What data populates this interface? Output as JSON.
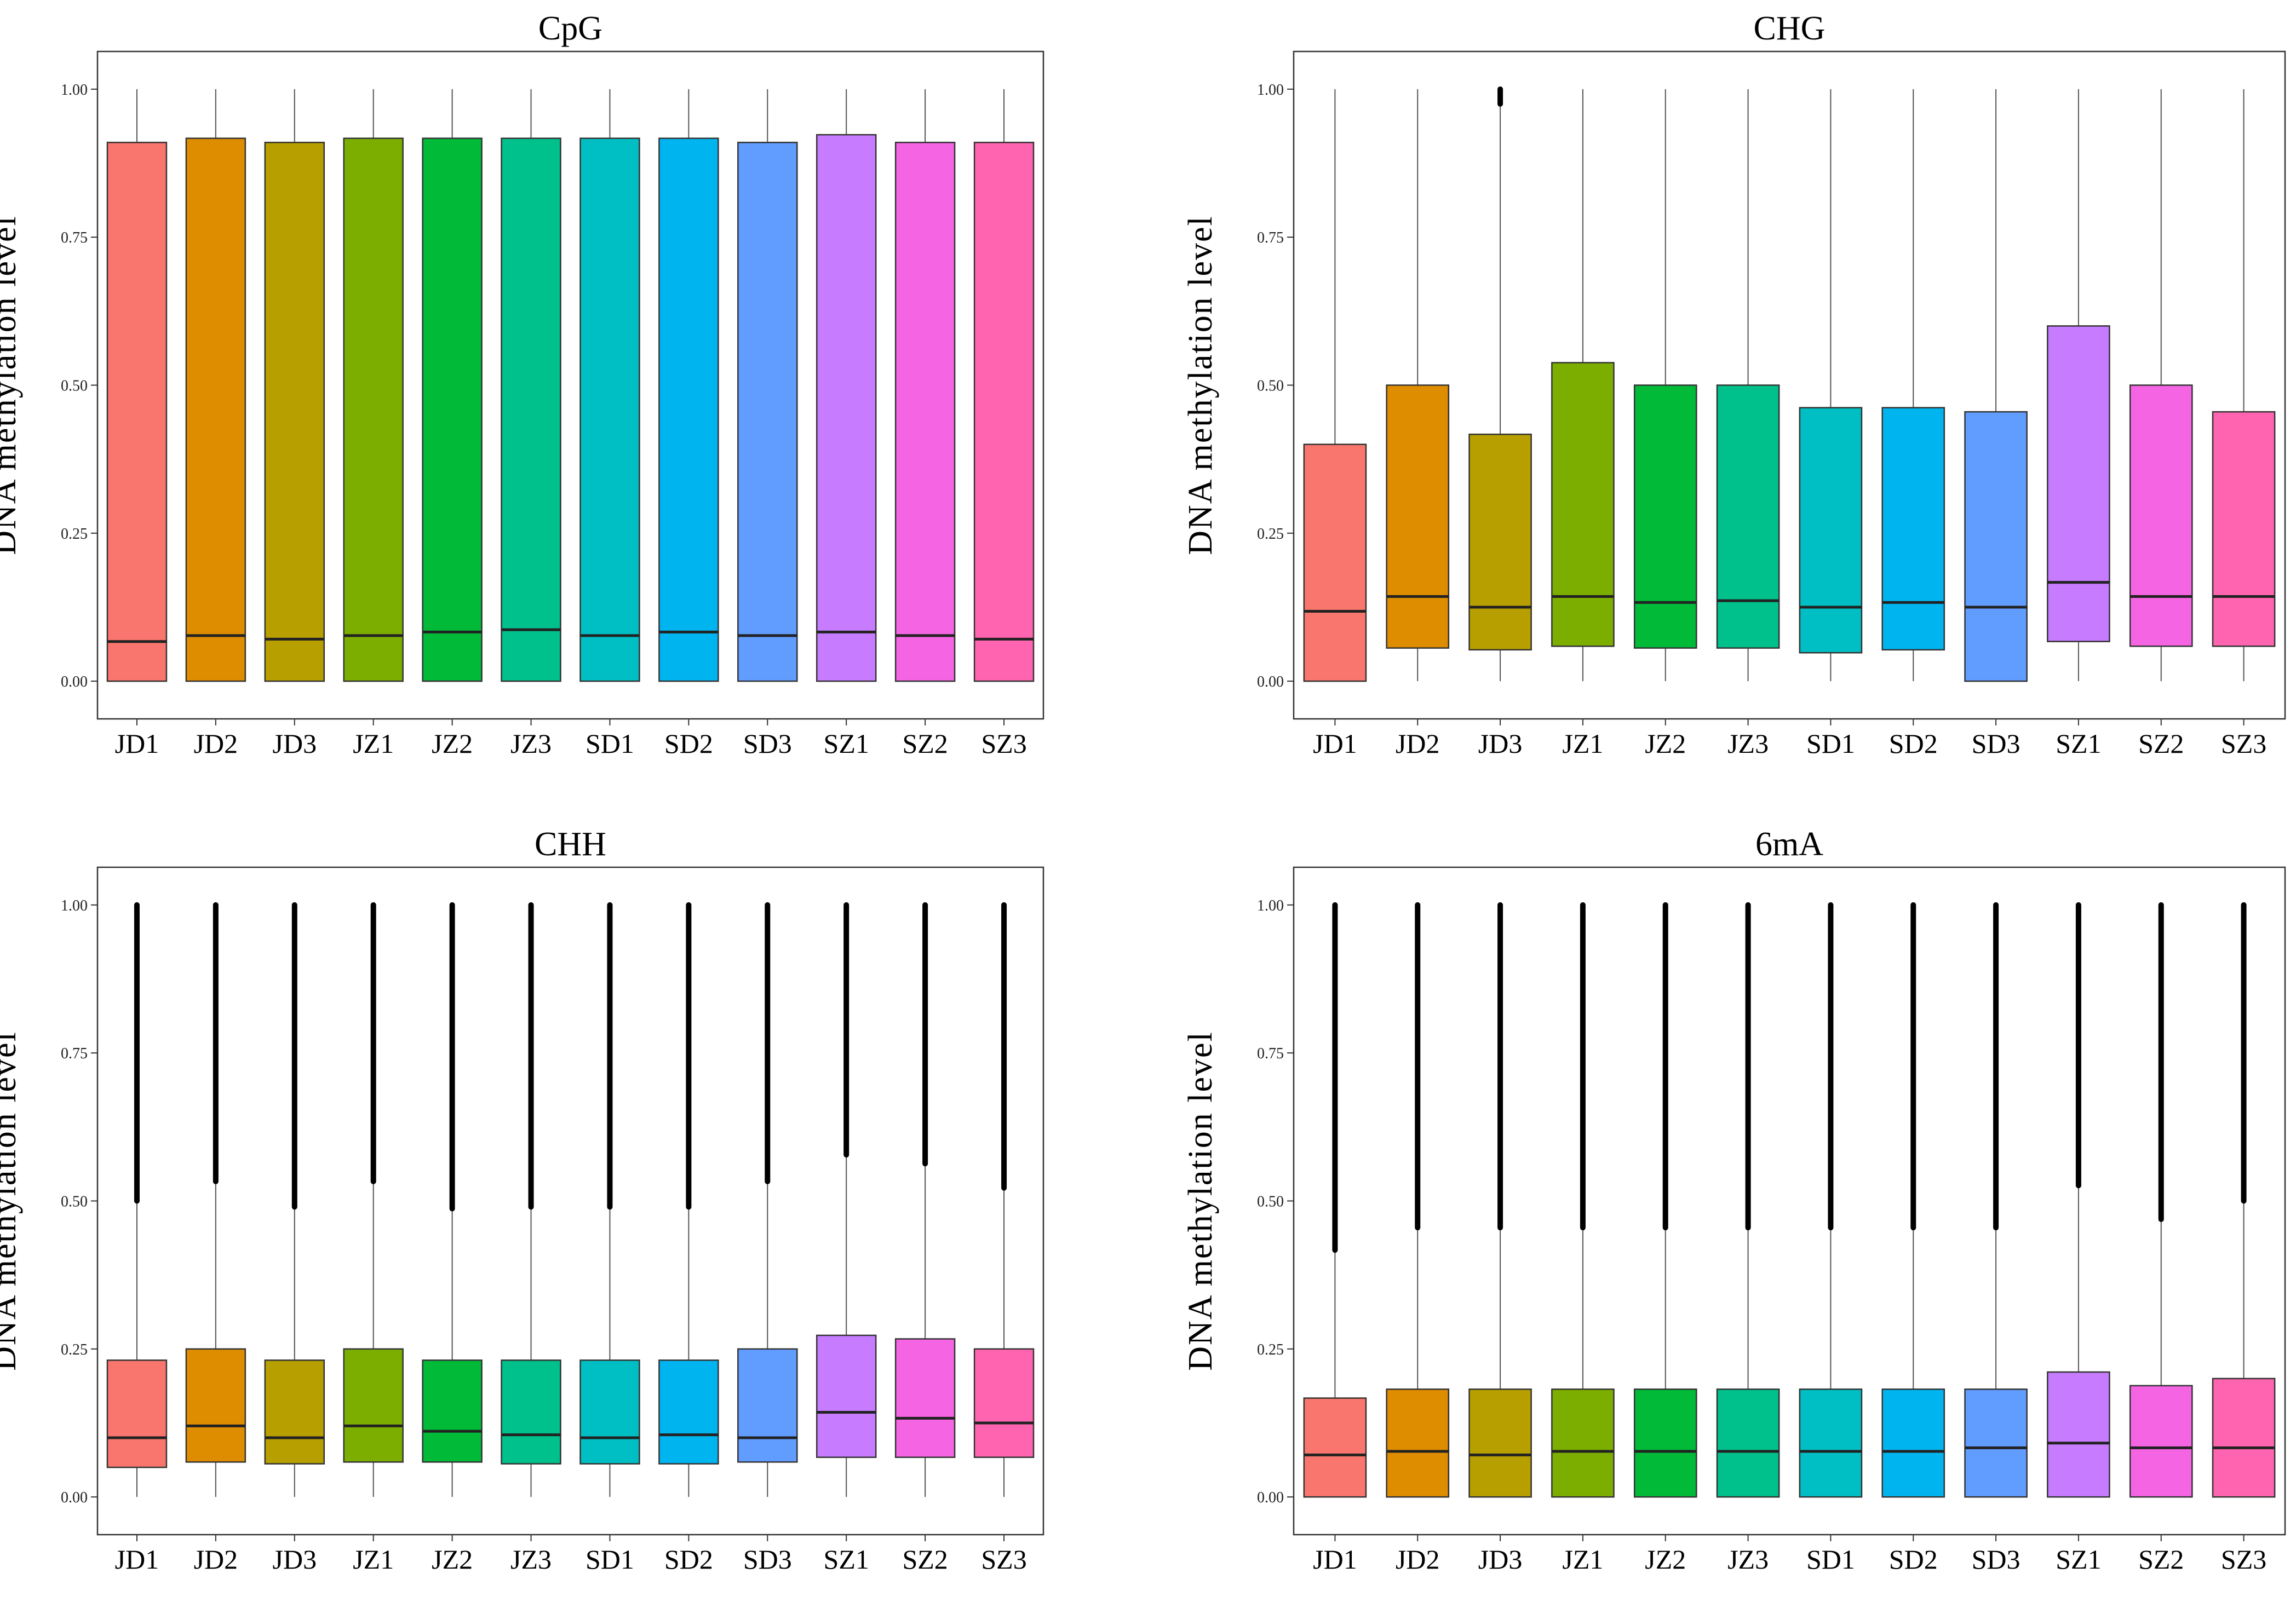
{
  "figure": {
    "ylabel": "DNA  methylation  level",
    "samples": [
      "JD1",
      "JD2",
      "JD3",
      "JZ1",
      "JZ2",
      "JZ3",
      "SD1",
      "SD2",
      "SD3",
      "SZ1",
      "SZ2",
      "SZ3"
    ],
    "colors": [
      "#F8766D",
      "#DE8C00",
      "#B79F00",
      "#7CAE00",
      "#00BA38",
      "#00C08B",
      "#00BFC4",
      "#00B4F0",
      "#619CFF",
      "#C77CFF",
      "#F564E3",
      "#FF64B0"
    ],
    "yticks": [
      "0.00",
      "0.25",
      "0.50",
      "0.75",
      "1.00"
    ]
  },
  "chart_data": [
    {
      "type": "boxplot",
      "title": "CpG",
      "ylabel": "DNA  methylation  level",
      "ylim": [
        0,
        1
      ],
      "categories": [
        "JD1",
        "JD2",
        "JD3",
        "JZ1",
        "JZ2",
        "JZ3",
        "SD1",
        "SD2",
        "SD3",
        "SZ1",
        "SZ2",
        "SZ3"
      ],
      "boxes": [
        {
          "min": 0,
          "q1": 0,
          "median": 0.067,
          "q3": 0.91,
          "max": 1.0,
          "outliers_from": null
        },
        {
          "min": 0,
          "q1": 0,
          "median": 0.077,
          "q3": 0.917,
          "max": 1.0,
          "outliers_from": null
        },
        {
          "min": 0,
          "q1": 0,
          "median": 0.071,
          "q3": 0.91,
          "max": 1.0,
          "outliers_from": null
        },
        {
          "min": 0,
          "q1": 0,
          "median": 0.077,
          "q3": 0.917,
          "max": 1.0,
          "outliers_from": null
        },
        {
          "min": 0,
          "q1": 0,
          "median": 0.083,
          "q3": 0.917,
          "max": 1.0,
          "outliers_from": null
        },
        {
          "min": 0,
          "q1": 0,
          "median": 0.087,
          "q3": 0.917,
          "max": 1.0,
          "outliers_from": null
        },
        {
          "min": 0,
          "q1": 0,
          "median": 0.077,
          "q3": 0.917,
          "max": 1.0,
          "outliers_from": null
        },
        {
          "min": 0,
          "q1": 0,
          "median": 0.083,
          "q3": 0.917,
          "max": 1.0,
          "outliers_from": null
        },
        {
          "min": 0,
          "q1": 0,
          "median": 0.077,
          "q3": 0.91,
          "max": 1.0,
          "outliers_from": null
        },
        {
          "min": 0,
          "q1": 0,
          "median": 0.083,
          "q3": 0.923,
          "max": 1.0,
          "outliers_from": null
        },
        {
          "min": 0,
          "q1": 0,
          "median": 0.077,
          "q3": 0.91,
          "max": 1.0,
          "outliers_from": null
        },
        {
          "min": 0,
          "q1": 0,
          "median": 0.071,
          "q3": 0.91,
          "max": 1.0,
          "outliers_from": null
        }
      ]
    },
    {
      "type": "boxplot",
      "title": "CHG",
      "ylabel": "DNA  methylation  level",
      "ylim": [
        0,
        1
      ],
      "categories": [
        "JD1",
        "JD2",
        "JD3",
        "JZ1",
        "JZ2",
        "JZ3",
        "SD1",
        "SD2",
        "SD3",
        "SZ1",
        "SZ2",
        "SZ3"
      ],
      "boxes": [
        {
          "min": 0,
          "q1": 0,
          "median": 0.118,
          "q3": 0.4,
          "max": 1.0,
          "outliers_from": null
        },
        {
          "min": 0,
          "q1": 0.056,
          "median": 0.143,
          "q3": 0.5,
          "max": 1.0,
          "outliers_from": null
        },
        {
          "min": 0,
          "q1": 0.053,
          "median": 0.125,
          "q3": 0.417,
          "max": 0.975,
          "outliers_from": 0.975
        },
        {
          "min": 0,
          "q1": 0.059,
          "median": 0.143,
          "q3": 0.538,
          "max": 1.0,
          "outliers_from": null
        },
        {
          "min": 0,
          "q1": 0.056,
          "median": 0.133,
          "q3": 0.5,
          "max": 1.0,
          "outliers_from": null
        },
        {
          "min": 0,
          "q1": 0.056,
          "median": 0.136,
          "q3": 0.5,
          "max": 1.0,
          "outliers_from": null
        },
        {
          "min": 0,
          "q1": 0.048,
          "median": 0.125,
          "q3": 0.462,
          "max": 1.0,
          "outliers_from": null
        },
        {
          "min": 0,
          "q1": 0.053,
          "median": 0.133,
          "q3": 0.462,
          "max": 1.0,
          "outliers_from": null
        },
        {
          "min": 0,
          "q1": 0,
          "median": 0.125,
          "q3": 0.455,
          "max": 1.0,
          "outliers_from": null
        },
        {
          "min": 0,
          "q1": 0.067,
          "median": 0.167,
          "q3": 0.6,
          "max": 1.0,
          "outliers_from": null
        },
        {
          "min": 0,
          "q1": 0.059,
          "median": 0.143,
          "q3": 0.5,
          "max": 1.0,
          "outliers_from": null
        },
        {
          "min": 0,
          "q1": 0.059,
          "median": 0.143,
          "q3": 0.455,
          "max": 1.0,
          "outliers_from": null
        }
      ]
    },
    {
      "type": "boxplot",
      "title": "CHH",
      "ylabel": "DNA  methylation  level",
      "ylim": [
        0,
        1
      ],
      "categories": [
        "JD1",
        "JD2",
        "JD3",
        "JZ1",
        "JZ2",
        "JZ3",
        "SD1",
        "SD2",
        "SD3",
        "SZ1",
        "SZ2",
        "SZ3"
      ],
      "boxes": [
        {
          "min": 0,
          "q1": 0.05,
          "median": 0.1,
          "q3": 0.231,
          "max": 0.5,
          "outliers_from": 0.5
        },
        {
          "min": 0,
          "q1": 0.059,
          "median": 0.12,
          "q3": 0.25,
          "max": 0.533,
          "outliers_from": 0.533
        },
        {
          "min": 0,
          "q1": 0.056,
          "median": 0.1,
          "q3": 0.231,
          "max": 0.49,
          "outliers_from": 0.49
        },
        {
          "min": 0,
          "q1": 0.059,
          "median": 0.12,
          "q3": 0.25,
          "max": 0.533,
          "outliers_from": 0.533
        },
        {
          "min": 0,
          "q1": 0.059,
          "median": 0.111,
          "q3": 0.231,
          "max": 0.487,
          "outliers_from": 0.487
        },
        {
          "min": 0,
          "q1": 0.056,
          "median": 0.105,
          "q3": 0.231,
          "max": 0.49,
          "outliers_from": 0.49
        },
        {
          "min": 0,
          "q1": 0.056,
          "median": 0.1,
          "q3": 0.231,
          "max": 0.49,
          "outliers_from": 0.49
        },
        {
          "min": 0,
          "q1": 0.056,
          "median": 0.105,
          "q3": 0.231,
          "max": 0.49,
          "outliers_from": 0.49
        },
        {
          "min": 0,
          "q1": 0.059,
          "median": 0.1,
          "q3": 0.25,
          "max": 0.533,
          "outliers_from": 0.533
        },
        {
          "min": 0,
          "q1": 0.067,
          "median": 0.143,
          "q3": 0.273,
          "max": 0.578,
          "outliers_from": 0.578
        },
        {
          "min": 0,
          "q1": 0.067,
          "median": 0.133,
          "q3": 0.267,
          "max": 0.563,
          "outliers_from": 0.563
        },
        {
          "min": 0,
          "q1": 0.067,
          "median": 0.125,
          "q3": 0.25,
          "max": 0.522,
          "outliers_from": 0.522
        }
      ]
    },
    {
      "type": "boxplot",
      "title": "6mA",
      "ylabel": "DNA  methylation  level",
      "ylim": [
        0,
        1
      ],
      "categories": [
        "JD1",
        "JD2",
        "JD3",
        "JZ1",
        "JZ2",
        "JZ3",
        "SD1",
        "SD2",
        "SD3",
        "SZ1",
        "SZ2",
        "SZ3"
      ],
      "boxes": [
        {
          "min": 0,
          "q1": 0,
          "median": 0.071,
          "q3": 0.167,
          "max": 0.417,
          "outliers_from": 0.417
        },
        {
          "min": 0,
          "q1": 0,
          "median": 0.077,
          "q3": 0.182,
          "max": 0.455,
          "outliers_from": 0.455
        },
        {
          "min": 0,
          "q1": 0,
          "median": 0.071,
          "q3": 0.182,
          "max": 0.455,
          "outliers_from": 0.455
        },
        {
          "min": 0,
          "q1": 0,
          "median": 0.077,
          "q3": 0.182,
          "max": 0.455,
          "outliers_from": 0.455
        },
        {
          "min": 0,
          "q1": 0,
          "median": 0.077,
          "q3": 0.182,
          "max": 0.455,
          "outliers_from": 0.455
        },
        {
          "min": 0,
          "q1": 0,
          "median": 0.077,
          "q3": 0.182,
          "max": 0.455,
          "outliers_from": 0.455
        },
        {
          "min": 0,
          "q1": 0,
          "median": 0.077,
          "q3": 0.182,
          "max": 0.455,
          "outliers_from": 0.455
        },
        {
          "min": 0,
          "q1": 0,
          "median": 0.077,
          "q3": 0.182,
          "max": 0.455,
          "outliers_from": 0.455
        },
        {
          "min": 0,
          "q1": 0,
          "median": 0.083,
          "q3": 0.182,
          "max": 0.455,
          "outliers_from": 0.455
        },
        {
          "min": 0,
          "q1": 0,
          "median": 0.091,
          "q3": 0.211,
          "max": 0.526,
          "outliers_from": 0.526
        },
        {
          "min": 0,
          "q1": 0,
          "median": 0.083,
          "q3": 0.188,
          "max": 0.469,
          "outliers_from": 0.469
        },
        {
          "min": 0,
          "q1": 0,
          "median": 0.083,
          "q3": 0.2,
          "max": 0.5,
          "outliers_from": 0.5
        }
      ]
    }
  ]
}
